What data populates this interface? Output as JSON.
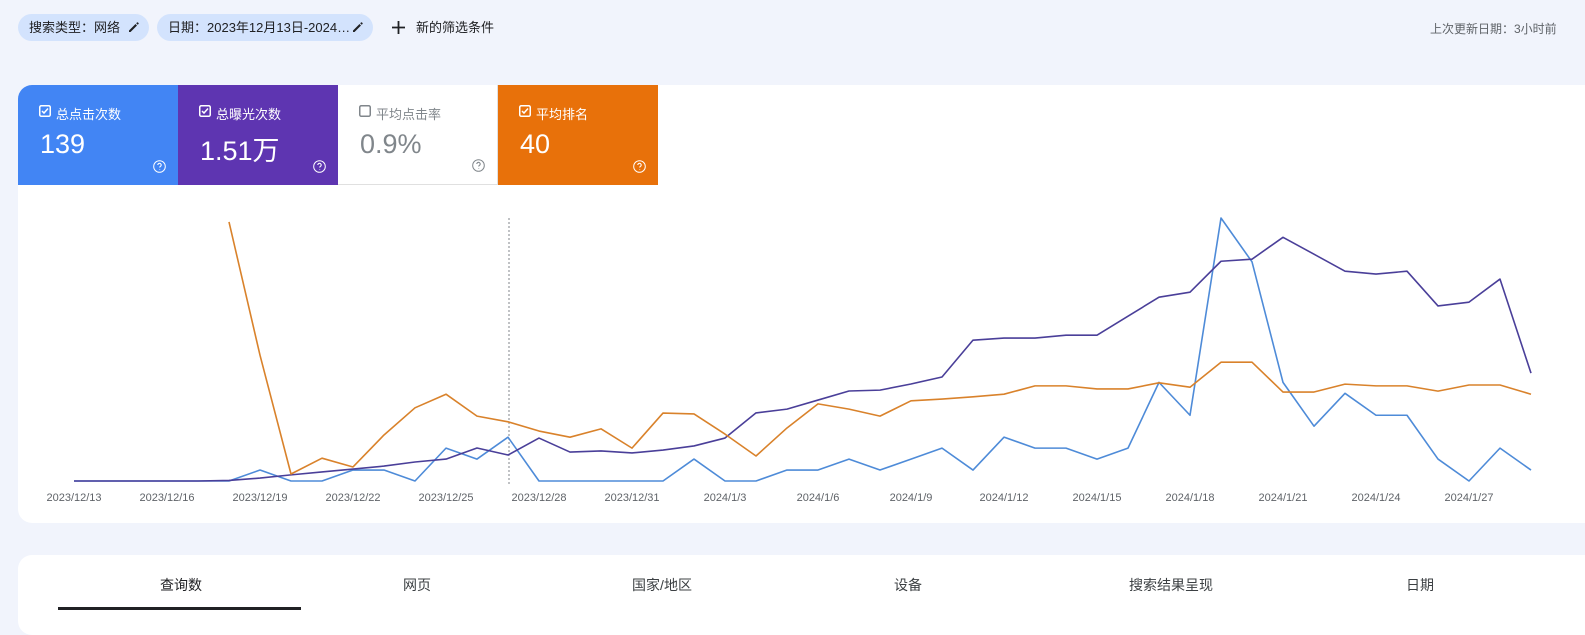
{
  "filters": [
    "搜索类型：网络",
    "日期：2023年12月13日-2024…"
  ],
  "new_filter": "新的筛选条件",
  "last_updated": "上次更新日期：3小时前",
  "metrics": [
    {
      "label": "总点击次数",
      "value": "139",
      "checked": true,
      "color": "#4285f4"
    },
    {
      "label": "总曝光次数",
      "value": "1.51万",
      "checked": true,
      "color": "#5e35b1"
    },
    {
      "label": "平均点击率",
      "value": "0.9%",
      "checked": false,
      "color": "#ffffff"
    },
    {
      "label": "平均排名",
      "value": "40",
      "checked": true,
      "color": "#e8710a"
    }
  ],
  "chart_data": {
    "type": "line",
    "categories": [
      "2023/12/13",
      null,
      null,
      "2023/12/16",
      null,
      null,
      "2023/12/19",
      null,
      null,
      "2023/12/22",
      null,
      null,
      "2023/12/25",
      null,
      null,
      "2023/12/28",
      null,
      null,
      "2023/12/31",
      null,
      null,
      "2024/1/3",
      null,
      null,
      "2024/1/6",
      null,
      null,
      "2024/1/9",
      null,
      null,
      "2024/1/12",
      null,
      null,
      "2024/1/15",
      null,
      null,
      "2024/1/18",
      null,
      null,
      "2024/1/21",
      null,
      null,
      "2024/1/24",
      null,
      null,
      "2024/1/27",
      null,
      null
    ],
    "series": [
      {
        "color": "#4e8bd8",
        "ylim": [
          0,
          24
        ],
        "values": [
          0,
          0,
          0,
          0,
          0,
          0,
          1,
          0,
          0,
          1,
          1,
          0,
          3,
          2,
          4,
          0,
          0,
          0,
          0,
          0,
          2,
          0,
          0,
          1,
          1,
          2,
          1,
          2,
          3,
          1,
          4,
          3,
          3,
          2,
          3,
          9,
          6,
          24,
          20,
          9,
          5,
          8,
          6,
          6,
          2,
          0,
          3,
          1
        ]
      },
      {
        "color": "#4a3f99",
        "ylim": [
          0,
          900
        ],
        "values": [
          0,
          0,
          0,
          0,
          0,
          2,
          10,
          21,
          31,
          41,
          51,
          65,
          75,
          113,
          89,
          147,
          99,
          103,
          96,
          106,
          120,
          147,
          233,
          246,
          277,
          308,
          311,
          332,
          356,
          482,
          489,
          489,
          499,
          499,
          564,
          629,
          646,
          752,
          759,
          834,
          776,
          718,
          708,
          718,
          599,
          612,
          691,
          369
        ]
      },
      {
        "color": "#d9822b",
        "ylim": [
          60,
          0
        ],
        "values": [
          null,
          null,
          null,
          null,
          null,
          0.9,
          31.3,
          58.4,
          54.8,
          56.8,
          49.5,
          43.3,
          40.2,
          45.2,
          46.5,
          48.6,
          50.0,
          48.1,
          52.5,
          44.5,
          44.7,
          49.3,
          54.3,
          47.9,
          42.4,
          43.6,
          45.2,
          41.7,
          41.3,
          40.8,
          40.2,
          38.3,
          38.3,
          39.0,
          39.0,
          37.6,
          38.6,
          32.9,
          32.9,
          39.7,
          39.7,
          37.9,
          38.3,
          38.3,
          39.5,
          38.1,
          38.1,
          40.2
        ]
      }
    ]
  },
  "tabs": [
    "查询数",
    "网页",
    "国家/地区",
    "设备",
    "搜索结果呈现",
    "日期"
  ]
}
